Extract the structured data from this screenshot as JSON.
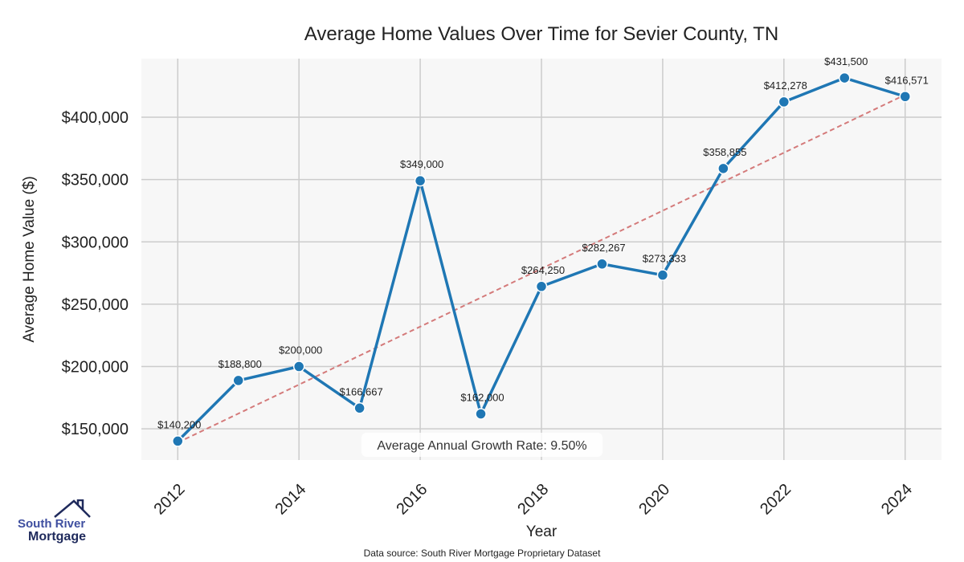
{
  "chart_data": {
    "type": "line",
    "title": "Average Home Values Over Time for Sevier County, TN",
    "xlabel": "Year",
    "ylabel": "Average Home Value ($)",
    "x": [
      2012,
      2013,
      2014,
      2015,
      2016,
      2017,
      2018,
      2019,
      2020,
      2021,
      2022,
      2023,
      2024
    ],
    "values": [
      140200,
      188800,
      200000,
      166667,
      349000,
      162000,
      264250,
      282267,
      273333,
      358855,
      412278,
      431500,
      416571
    ],
    "data_labels": [
      "$140,200",
      "$188,800",
      "$200,000",
      "$166,667",
      "$349,000",
      "$162,000",
      "$264,250",
      "$282,267",
      "$273,333",
      "$358,855",
      "$412,278",
      "$431,500",
      "$416,571"
    ],
    "xticks": [
      "2012",
      "2014",
      "2016",
      "2018",
      "2020",
      "2022",
      "2024"
    ],
    "yticks": [
      150000,
      200000,
      250000,
      300000,
      350000,
      400000
    ],
    "ytick_labels": [
      "$150,000",
      "$200,000",
      "$250,000",
      "$300,000",
      "$350,000",
      "$400,000"
    ],
    "xlim": [
      2011.4,
      2024.6
    ],
    "ylim": [
      125000,
      447000
    ],
    "trend": {
      "start": [
        2012,
        139000
      ],
      "end": [
        2024,
        418000
      ]
    },
    "annotation": "Average Annual Growth Rate: 9.50%",
    "grid": true,
    "colors": {
      "line": "#1f77b4",
      "trend": "#d47a7a",
      "background": "#f7f7f7",
      "grid": "#cccccc"
    }
  },
  "footer": {
    "source": "Data source: South River Mortgage Proprietary Dataset"
  },
  "logo": {
    "line1": "South River",
    "line2": "Mortgage"
  }
}
